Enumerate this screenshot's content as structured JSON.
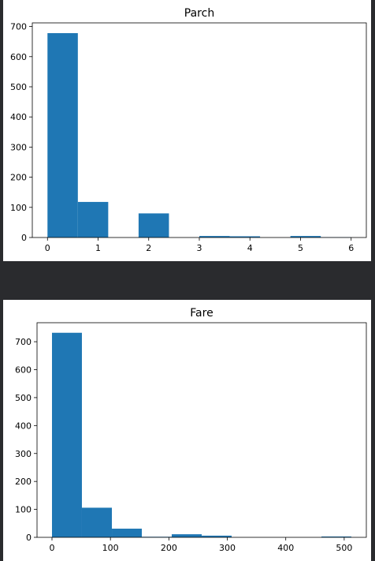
{
  "colors": {
    "bar": "#1f77b4",
    "background": "#2a2b2e",
    "panel": "#ffffff"
  },
  "chart_data": [
    {
      "type": "bar",
      "title": "Parch",
      "bins": [
        {
          "x0": 0,
          "x1": 0.6,
          "count": 678
        },
        {
          "x0": 0.6,
          "x1": 1.2,
          "count": 118
        },
        {
          "x0": 1.2,
          "x1": 1.8,
          "count": 0
        },
        {
          "x0": 1.8,
          "x1": 2.4,
          "count": 80
        },
        {
          "x0": 2.4,
          "x1": 3.0,
          "count": 0
        },
        {
          "x0": 3.0,
          "x1": 3.6,
          "count": 5
        },
        {
          "x0": 3.6,
          "x1": 4.2,
          "count": 4
        },
        {
          "x0": 4.2,
          "x1": 4.8,
          "count": 0
        },
        {
          "x0": 4.8,
          "x1": 5.4,
          "count": 5
        },
        {
          "x0": 5.4,
          "x1": 6.0,
          "count": 1
        }
      ],
      "xlim": [
        -0.3,
        6.3
      ],
      "ylim": [
        0,
        712
      ],
      "xticks": [
        0,
        1,
        2,
        3,
        4,
        5,
        6
      ],
      "yticks": [
        0,
        100,
        200,
        300,
        400,
        500,
        600,
        700
      ],
      "xlabel": "",
      "ylabel": "",
      "grid": false
    },
    {
      "type": "bar",
      "title": "Fare",
      "bins": [
        {
          "x0": 0,
          "x1": 51.2,
          "count": 732
        },
        {
          "x0": 51.2,
          "x1": 102.5,
          "count": 106
        },
        {
          "x0": 102.5,
          "x1": 153.7,
          "count": 31
        },
        {
          "x0": 153.7,
          "x1": 204.9,
          "count": 2
        },
        {
          "x0": 204.9,
          "x1": 256.2,
          "count": 11
        },
        {
          "x0": 256.2,
          "x1": 307.4,
          "count": 6
        },
        {
          "x0": 307.4,
          "x1": 358.6,
          "count": 0
        },
        {
          "x0": 358.6,
          "x1": 409.8,
          "count": 0
        },
        {
          "x0": 409.8,
          "x1": 461.1,
          "count": 0
        },
        {
          "x0": 461.1,
          "x1": 512.3,
          "count": 3
        }
      ],
      "xlim": [
        -25.6,
        537.9
      ],
      "ylim": [
        0,
        768
      ],
      "xticks": [
        0,
        100,
        200,
        300,
        400,
        500
      ],
      "yticks": [
        0,
        100,
        200,
        300,
        400,
        500,
        600,
        700
      ],
      "xlabel": "",
      "ylabel": "",
      "grid": false
    }
  ]
}
